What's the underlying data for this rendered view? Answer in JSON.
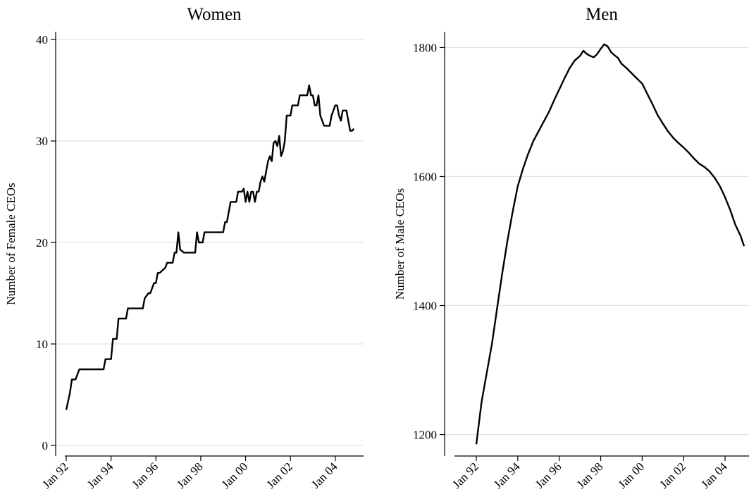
{
  "chart_data": [
    {
      "type": "line",
      "title": "Women",
      "xlabel": "",
      "ylabel": "Number of Female CEOs",
      "ylim": [
        0,
        40
      ],
      "yticks": [
        0,
        10,
        20,
        30,
        40
      ],
      "xlim": [
        "1992-01",
        "2004-12"
      ],
      "xticks": [
        "1992-01",
        "1994-01",
        "1996-01",
        "1998-01",
        "2000-01",
        "2002-01",
        "2004-01"
      ],
      "xtick_labels": [
        "Jan 92",
        "Jan 94",
        "Jan 96",
        "Jan 98",
        "Jan 00",
        "Jan 02",
        "Jan 04"
      ],
      "grid": "horizontal",
      "series": [
        {
          "x": [
            "1992-01",
            "1992-03",
            "1992-04",
            "1992-06",
            "1992-07",
            "1992-08",
            "1993-02",
            "1993-09",
            "1993-10",
            "1993-12",
            "1994-01",
            "1994-02",
            "1994-04",
            "1994-05",
            "1994-09",
            "1994-10",
            "1995-06",
            "1995-07",
            "1995-09",
            "1995-10",
            "1995-12",
            "1996-01",
            "1996-02",
            "1996-03",
            "1996-06",
            "1996-07",
            "1996-10",
            "1996-11",
            "1996-12",
            "1997-01",
            "1997-02",
            "1997-04",
            "1997-10",
            "1997-11",
            "1997-12",
            "1998-02",
            "1998-03",
            "1998-09",
            "1998-10",
            "1999-01",
            "1999-02",
            "1999-03",
            "1999-05",
            "1999-08",
            "1999-09",
            "1999-10",
            "1999-11",
            "1999-12",
            "2000-01",
            "2000-02",
            "2000-03",
            "2000-04",
            "2000-05",
            "2000-06",
            "2000-07",
            "2000-08",
            "2000-09",
            "2000-10",
            "2000-11",
            "2001-01",
            "2001-02",
            "2001-03",
            "2001-04",
            "2001-05",
            "2001-06",
            "2001-07",
            "2001-08",
            "2001-09",
            "2001-10",
            "2001-11",
            "2002-01",
            "2002-02",
            "2002-05",
            "2002-06",
            "2002-10",
            "2002-11",
            "2002-12",
            "2003-01",
            "2003-02",
            "2003-03",
            "2003-04",
            "2003-05",
            "2003-06",
            "2003-07",
            "2003-09",
            "2003-10",
            "2003-11",
            "2004-01",
            "2004-02",
            "2004-03",
            "2004-04",
            "2004-05",
            "2004-07",
            "2004-09",
            "2004-10",
            "2004-11"
          ],
          "values": [
            3.5,
            5.2,
            6.5,
            6.5,
            7.0,
            7.5,
            7.5,
            7.5,
            8.5,
            8.5,
            8.5,
            10.5,
            10.5,
            12.5,
            12.5,
            13.5,
            13.5,
            14.5,
            15.0,
            15.0,
            16.0,
            16.0,
            17.0,
            17.0,
            17.5,
            18.0,
            18.0,
            19.0,
            19.0,
            21.0,
            19.3,
            19.0,
            19.0,
            21.0,
            20.0,
            20.0,
            21.0,
            21.0,
            21.0,
            21.0,
            22.0,
            22.0,
            24.0,
            24.0,
            25.0,
            25.0,
            25.0,
            25.3,
            24.0,
            25.0,
            24.0,
            25.0,
            25.0,
            24.0,
            25.0,
            25.0,
            26.0,
            26.5,
            26.0,
            28.0,
            28.5,
            28.0,
            29.8,
            30.0,
            29.5,
            30.5,
            28.5,
            29.0,
            30.0,
            32.5,
            32.5,
            33.5,
            33.5,
            34.5,
            34.5,
            35.5,
            34.5,
            34.5,
            33.5,
            33.5,
            34.5,
            32.5,
            32.0,
            31.5,
            31.5,
            31.5,
            32.5,
            33.5,
            33.5,
            32.5,
            32.0,
            33.0,
            33.0,
            31.0,
            31.0,
            31.2
          ]
        }
      ]
    },
    {
      "type": "line",
      "title": "Men",
      "xlabel": "",
      "ylabel": "Number of Male CEOs",
      "ylim": [
        1170,
        1830
      ],
      "yticks": [
        1200,
        1400,
        1600,
        1800
      ],
      "xlim": [
        "1992-01",
        "2004-12"
      ],
      "xticks": [
        "1992-01",
        "1994-01",
        "1996-01",
        "1998-01",
        "2000-01",
        "2002-01",
        "2004-01"
      ],
      "xtick_labels": [
        "Jan 92",
        "Jan 94",
        "Jan 96",
        "Jan 98",
        "Jan 00",
        "Jan 02",
        "Jan 04"
      ],
      "grid": "horizontal",
      "series": [
        {
          "x": [
            "1992-01",
            "1992-04",
            "1992-07",
            "1992-10",
            "1993-01",
            "1993-04",
            "1993-07",
            "1993-10",
            "1994-01",
            "1994-04",
            "1994-07",
            "1994-10",
            "1995-01",
            "1995-04",
            "1995-07",
            "1995-10",
            "1996-01",
            "1996-04",
            "1996-07",
            "1996-10",
            "1997-01",
            "1997-03",
            "1997-05",
            "1997-07",
            "1997-09",
            "1997-11",
            "1998-01",
            "1998-03",
            "1998-05",
            "1998-07",
            "1998-09",
            "1998-11",
            "1999-01",
            "1999-04",
            "1999-07",
            "1999-10",
            "2000-01",
            "2000-04",
            "2000-07",
            "2000-10",
            "2001-01",
            "2001-04",
            "2001-07",
            "2001-10",
            "2002-01",
            "2002-04",
            "2002-07",
            "2002-10",
            "2003-01",
            "2003-04",
            "2003-07",
            "2003-10",
            "2004-01",
            "2004-04",
            "2004-07",
            "2004-10",
            "2004-12"
          ],
          "values": [
            1185,
            1250,
            1295,
            1340,
            1395,
            1450,
            1500,
            1545,
            1585,
            1612,
            1635,
            1655,
            1670,
            1685,
            1700,
            1718,
            1735,
            1752,
            1768,
            1780,
            1787,
            1795,
            1790,
            1787,
            1785,
            1790,
            1798,
            1805,
            1802,
            1793,
            1788,
            1784,
            1775,
            1768,
            1760,
            1752,
            1744,
            1728,
            1712,
            1695,
            1682,
            1670,
            1660,
            1652,
            1645,
            1637,
            1628,
            1620,
            1615,
            1608,
            1598,
            1585,
            1568,
            1548,
            1525,
            1508,
            1492
          ]
        }
      ]
    }
  ]
}
